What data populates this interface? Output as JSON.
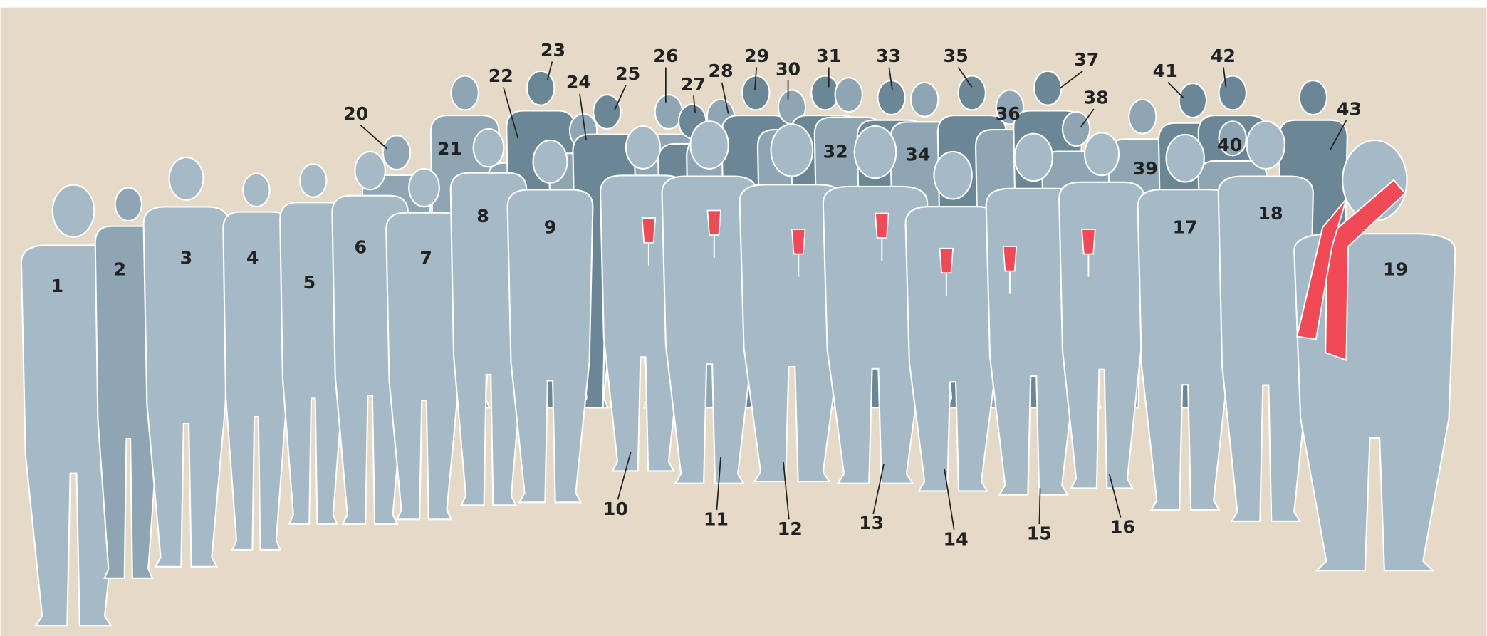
{
  "labels": [
    "1",
    "2",
    "3",
    "4",
    "5",
    "6",
    "7",
    "8",
    "9",
    "10",
    "11",
    "12",
    "13",
    "14",
    "15",
    "16",
    "17",
    "18",
    "19",
    "20",
    "21",
    "22",
    "23",
    "24",
    "25",
    "26",
    "27",
    "28",
    "29",
    "30",
    "31",
    "32",
    "33",
    "34",
    "35",
    "36",
    "37",
    "38",
    "39",
    "40",
    "41",
    "42",
    "43"
  ]
}
